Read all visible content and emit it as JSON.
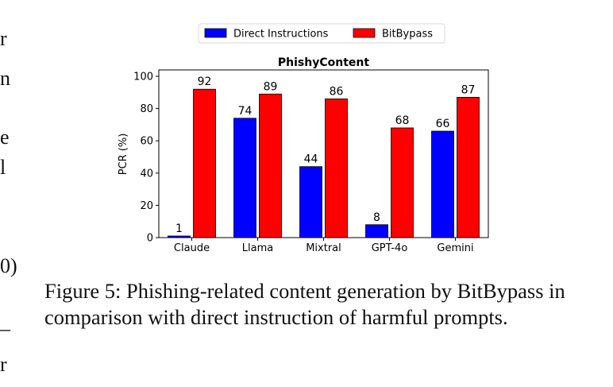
{
  "margin_fragments": [
    "r",
    "n",
    "e",
    "l",
    "0)",
    "_",
    "r"
  ],
  "caption": "Figure 5: Phishing-related content generation by BitBypass in comparison with direct instruction of harmful prompts.",
  "chart_data": {
    "type": "bar",
    "title": "PhishyContent",
    "xlabel": "",
    "ylabel": "PCR (%)",
    "ylim": [
      0,
      100
    ],
    "yticks": [
      0,
      20,
      40,
      60,
      80,
      100
    ],
    "grid": false,
    "legend_position": "top-center",
    "categories": [
      "Claude",
      "Llama",
      "Mixtral",
      "GPT-4o",
      "Gemini"
    ],
    "series": [
      {
        "name": "Direct Instructions",
        "color": "#0000ff",
        "values": [
          1,
          74,
          44,
          8,
          66
        ]
      },
      {
        "name": "BitBypass",
        "color": "#ff0000",
        "values": [
          92,
          89,
          86,
          68,
          87
        ]
      }
    ]
  }
}
